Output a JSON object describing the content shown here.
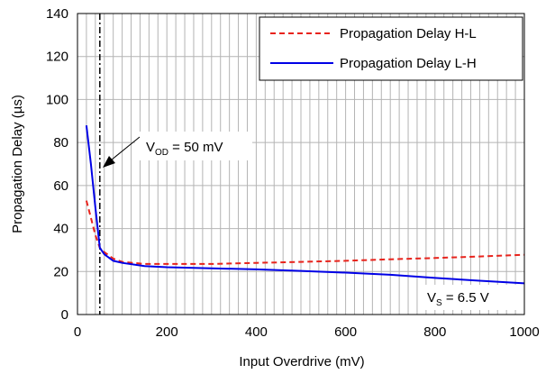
{
  "chart_data": {
    "type": "line",
    "title": "",
    "xlabel": "Input Overdrive (mV)",
    "ylabel": "Propagation Delay (µs)",
    "xlim": [
      0,
      1000
    ],
    "ylim": [
      0,
      140
    ],
    "xticks": [
      0,
      200,
      400,
      600,
      800,
      1000
    ],
    "yticks": [
      0,
      20,
      40,
      60,
      80,
      100,
      120,
      140
    ],
    "x_minor_step": 20,
    "y_major_step": 20,
    "grid": true,
    "legend_position": "top-right",
    "series": [
      {
        "name": "Propagation Delay H-L",
        "color": "#e8231c",
        "style": "dashed",
        "x": [
          20,
          30,
          40,
          50,
          60,
          80,
          100,
          150,
          200,
          300,
          400,
          500,
          600,
          700,
          800,
          900,
          1000
        ],
        "y": [
          53,
          45,
          37,
          31,
          29,
          26,
          24.5,
          23.5,
          23.5,
          23.5,
          24,
          24.5,
          25,
          25.7,
          26.3,
          27,
          27.8
        ]
      },
      {
        "name": "Propagation Delay L-H",
        "color": "#0000e6",
        "style": "solid",
        "x": [
          20,
          30,
          40,
          50,
          60,
          80,
          100,
          150,
          200,
          300,
          400,
          500,
          600,
          700,
          800,
          900,
          1000
        ],
        "y": [
          88,
          70,
          50,
          31,
          28,
          25,
          24,
          22.5,
          22,
          21.5,
          21,
          20.3,
          19.5,
          18.5,
          17,
          15.7,
          14.5
        ]
      }
    ],
    "annotations": {
      "vod_line_x": 50,
      "vod_main": "V",
      "vod_sub": "OD",
      "vod_value": " = 50 mV",
      "vs_main": "V",
      "vs_sub": "S",
      "vs_value": " = 6.5 V"
    }
  }
}
